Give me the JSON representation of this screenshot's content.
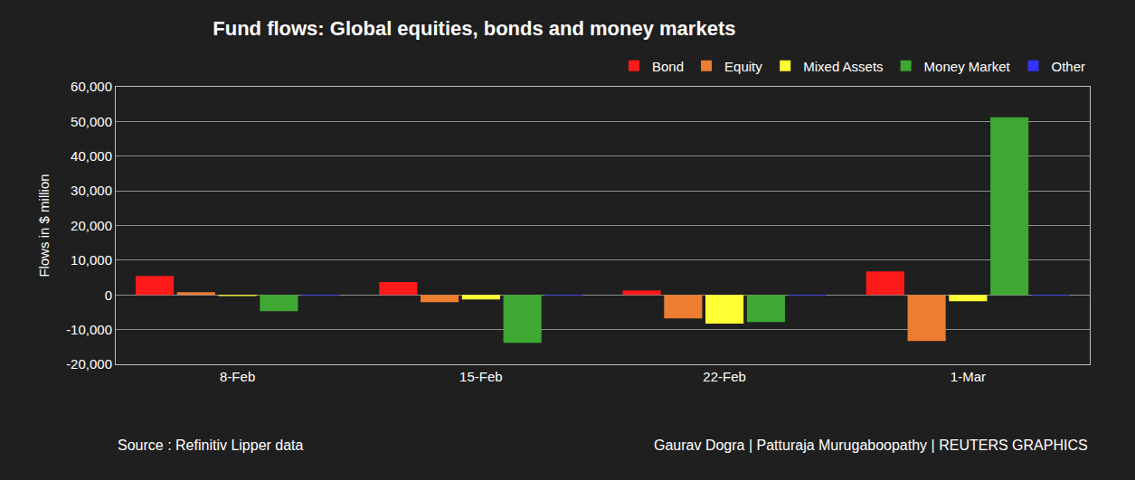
{
  "chart_data": {
    "type": "bar",
    "title": "Fund flows: Global equities, bonds and money markets",
    "y_label": "Flows in $ million",
    "annotations": [
      "Source : Refinitiv Lipper data",
      "Gaurav Dogra | Patturaja Murugaboopathy | REUTERS GRAPHICS"
    ],
    "categories": [
      "8-Feb",
      "15-Feb",
      "22-Feb",
      "1-Mar"
    ],
    "series": [
      {
        "name": "Bond",
        "color": "#ff1a1a",
        "values": [
          5500,
          3700,
          1300,
          6800
        ]
      },
      {
        "name": "Equity",
        "color": "#ed7d31",
        "values": [
          800,
          -2100,
          -6800,
          -13300
        ]
      },
      {
        "name": "Mixed Assets",
        "color": "#ffff33",
        "values": [
          -300,
          -1300,
          -8300,
          -1800
        ]
      },
      {
        "name": "Money Market",
        "color": "#3ea832",
        "values": [
          -4700,
          -13800,
          -7800,
          51200
        ]
      },
      {
        "name": "Other",
        "color": "#3333ff",
        "values": [
          -200,
          -200,
          -200,
          -200
        ]
      }
    ],
    "ylim": [
      -20000,
      60000
    ],
    "yticks": [
      {
        "value": -20000,
        "label": "-20,000"
      },
      {
        "value": -10000,
        "label": "-10,000"
      },
      0,
      {
        "value": 10000,
        "label": "10,000"
      },
      {
        "value": 20000,
        "label": "20,000"
      },
      {
        "value": 30000,
        "label": "30,000"
      },
      {
        "value": 40000,
        "label": "40,000"
      },
      {
        "value": 50000,
        "label": "50,000"
      },
      {
        "value": 60000,
        "label": "60,000"
      }
    ],
    "grid": true,
    "legend": "top-right"
  }
}
